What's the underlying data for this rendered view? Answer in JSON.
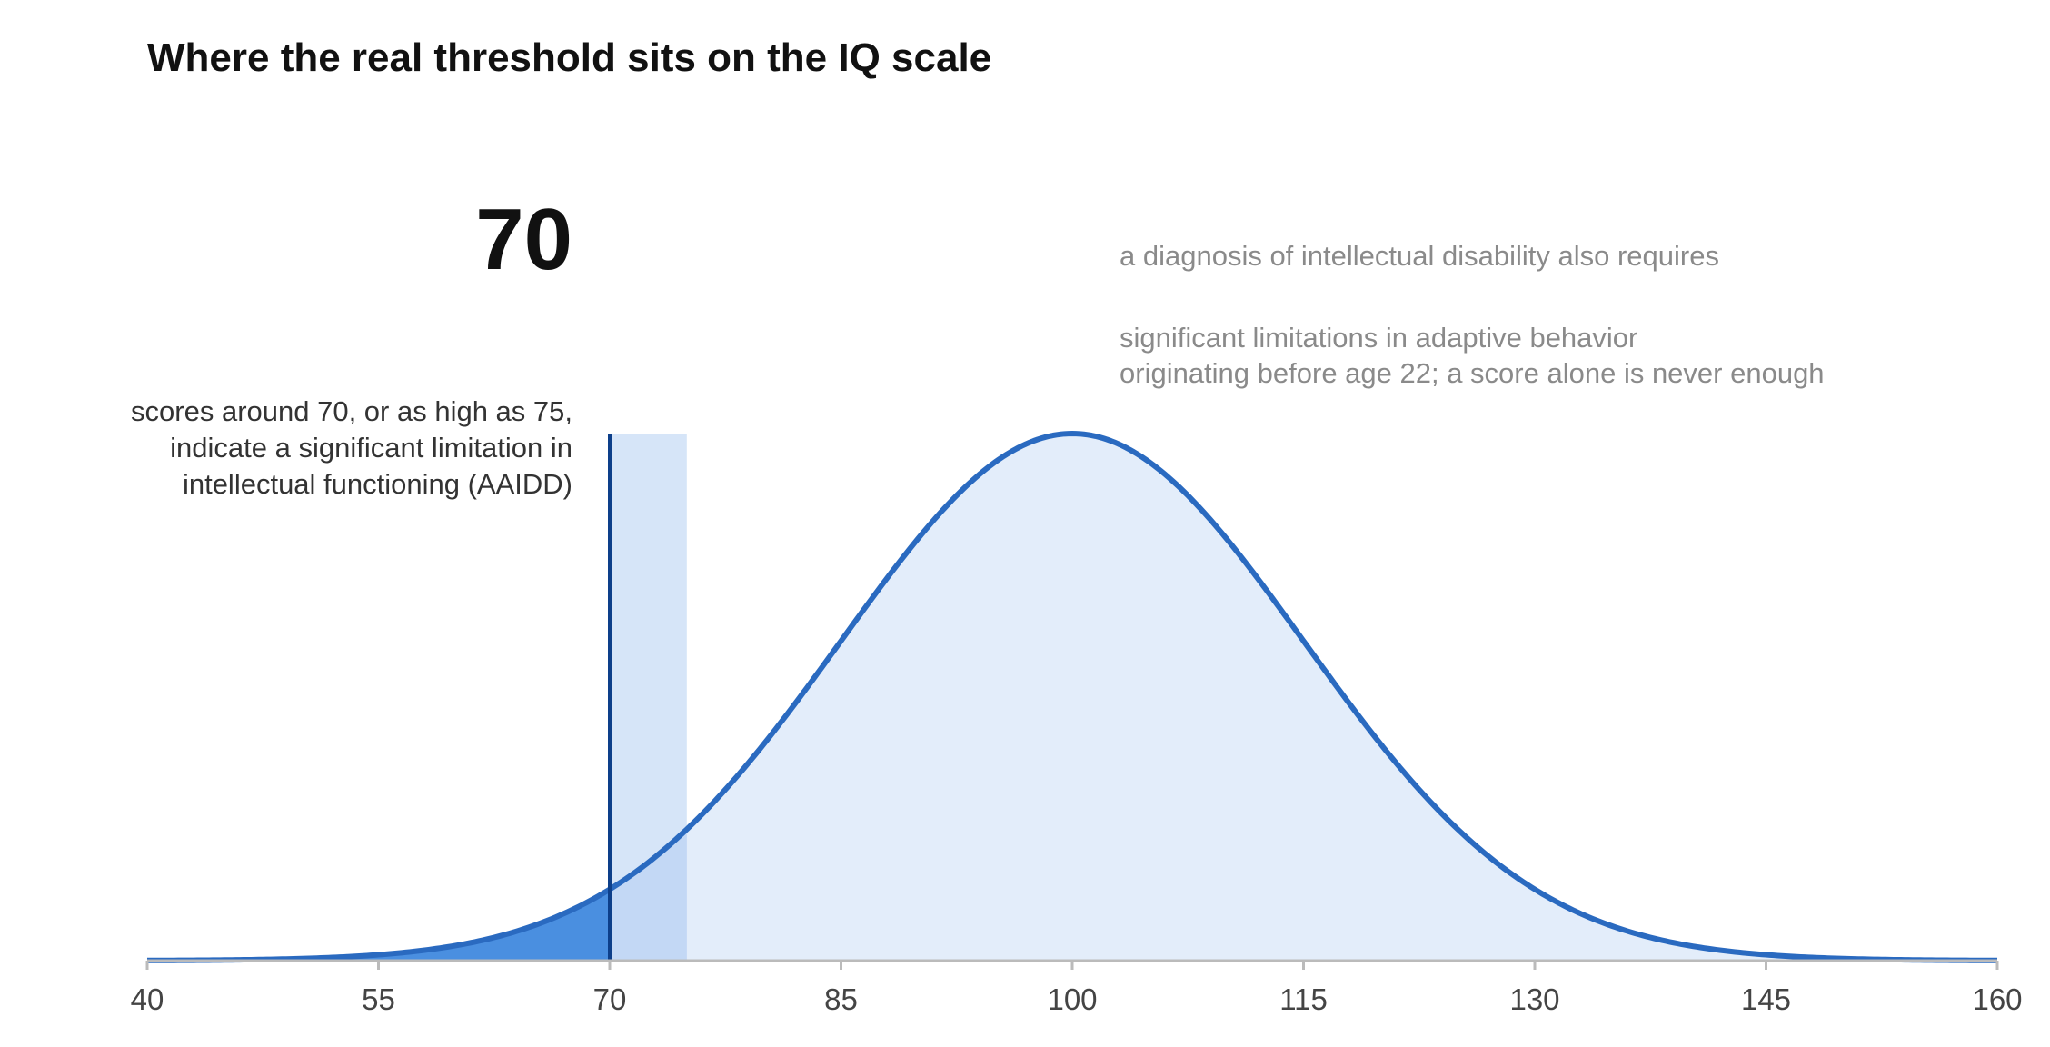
{
  "chart_data": {
    "type": "area",
    "title": "Where the real threshold sits on the IQ scale",
    "distribution": {
      "name": "",
      "kind": "normal",
      "mean": 100,
      "sd": 15
    },
    "xlim": [
      40,
      160
    ],
    "xticks": [
      40,
      55,
      70,
      85,
      100,
      115,
      130,
      145,
      160
    ],
    "threshold": {
      "value": 70,
      "label": "70",
      "upper_range": 75
    },
    "annotations": {
      "threshold_note": [
        "scores around 70, or as high as 75,",
        "indicate a significant limitation in",
        "intellectual functioning (AAIDD)"
      ],
      "diagnosis_heading": "a diagnosis of intellectual disability also requires",
      "diagnosis_note": [
        "significant limitations in adaptive behavior",
        "originating before age 22; a score alone is never enough"
      ]
    },
    "grid": false,
    "legend": "none"
  },
  "colors": {
    "curve": "#2a6ac0",
    "curve_fill": "#e3edfa",
    "band_fill": "#c3d8f5",
    "band_above": "#d6e5f8",
    "tail_fill": "#4a8fe0",
    "threshold_line": "#0d3f8a",
    "axis": "#bbbbbb",
    "title": "#111111",
    "note_dark": "#333333",
    "note_gray": "#8a8a8a"
  }
}
